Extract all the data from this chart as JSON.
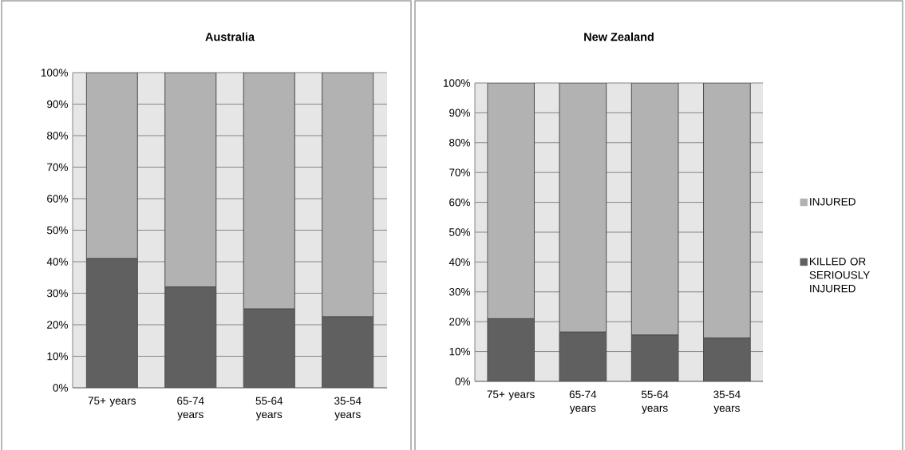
{
  "chart_data": [
    {
      "type": "bar",
      "title": "Australia",
      "stacked": true,
      "grid": "y",
      "categories": [
        "75+ years",
        "65-74 years",
        "55-64 years",
        "35-54 years"
      ],
      "series": [
        {
          "color": "#606060",
          "values": [
            41,
            32,
            25,
            22.5
          ]
        },
        {
          "color": "#b2b2b2",
          "values": [
            59,
            68,
            75,
            77.5
          ]
        }
      ],
      "ylim": [
        0,
        100
      ],
      "yticks": [
        {
          "value": 0,
          "label": "0%"
        },
        {
          "value": 10,
          "label": "10%"
        },
        {
          "value": 20,
          "label": "20%"
        },
        {
          "value": 30,
          "label": "30%"
        },
        {
          "value": 40,
          "label": "40%"
        },
        {
          "value": 50,
          "label": "50%"
        },
        {
          "value": 60,
          "label": "60%"
        },
        {
          "value": 70,
          "label": "70%"
        },
        {
          "value": 80,
          "label": "80%"
        },
        {
          "value": 90,
          "label": "90%"
        },
        {
          "value": 100,
          "label": "100%"
        }
      ]
    },
    {
      "type": "bar",
      "title": "New Zealand",
      "stacked": true,
      "grid": "y",
      "legend": "right",
      "categories": [
        "75+ years",
        "65-74 years",
        "55-64 years",
        "35-54 years"
      ],
      "series": [
        {
          "name": "KILLED OR SERIOUSLY INJURED",
          "color": "#606060",
          "values": [
            21,
            16.5,
            15.5,
            14.5
          ]
        },
        {
          "name": "INJURED",
          "color": "#b2b2b2",
          "values": [
            79,
            83.5,
            84.5,
            85.5
          ]
        }
      ],
      "ylim": [
        0,
        100
      ],
      "yticks": [
        {
          "value": 0,
          "label": "0%"
        },
        {
          "value": 10,
          "label": "10%"
        },
        {
          "value": 20,
          "label": "20%"
        },
        {
          "value": 30,
          "label": "30%"
        },
        {
          "value": 40,
          "label": "40%"
        },
        {
          "value": 50,
          "label": "50%"
        },
        {
          "value": 60,
          "label": "60%"
        },
        {
          "value": 70,
          "label": "70%"
        },
        {
          "value": 80,
          "label": "80%"
        },
        {
          "value": 90,
          "label": "90%"
        },
        {
          "value": 100,
          "label": "100%"
        }
      ]
    }
  ]
}
